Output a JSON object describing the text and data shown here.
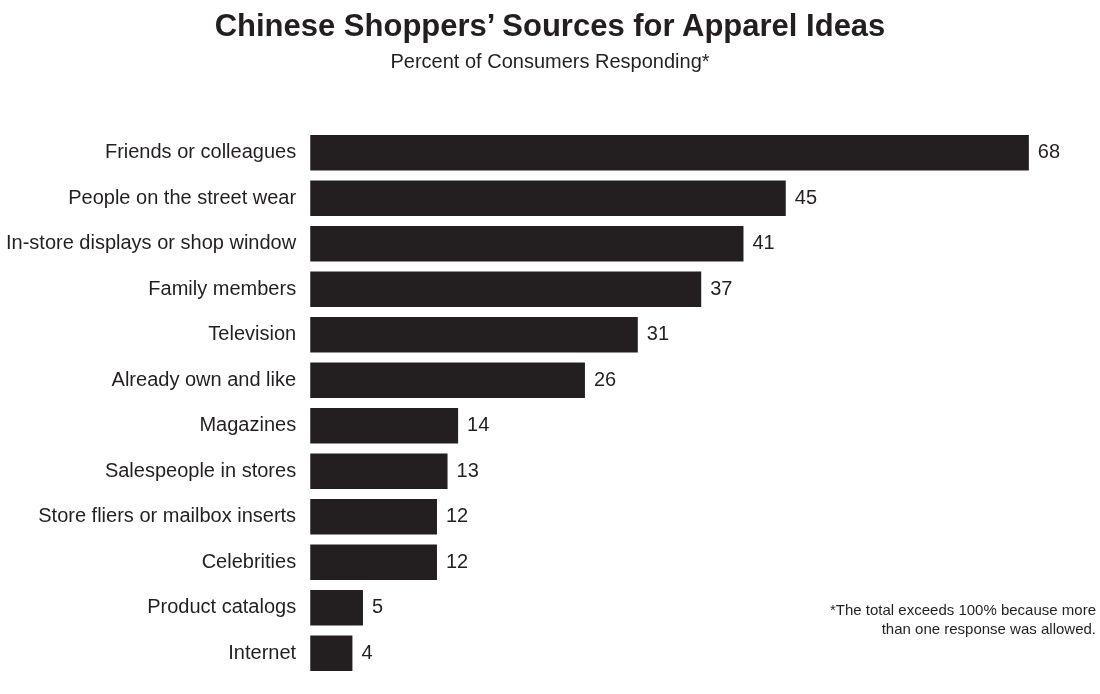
{
  "chart_data": {
    "type": "bar",
    "orientation": "horizontal",
    "title": "Chinese Shoppers’ Sources for Apparel Ideas",
    "subtitle": "Percent of Consumers Responding*",
    "categories": [
      "Friends or colleagues",
      "People on the street wear",
      "In-store displays or shop window",
      "Family members",
      "Television",
      "Already own and like",
      "Magazines",
      "Salespeople in stores",
      "Store fliers or mailbox inserts",
      "Celebrities",
      "Product catalogs",
      "Internet"
    ],
    "values": [
      68,
      45,
      41,
      37,
      31,
      26,
      14,
      13,
      12,
      12,
      5,
      4
    ],
    "color": "#231f20",
    "data_labels": true,
    "legend": false,
    "annotations": [
      "*The total exceeds 100% because more than one response was allowed."
    ]
  }
}
